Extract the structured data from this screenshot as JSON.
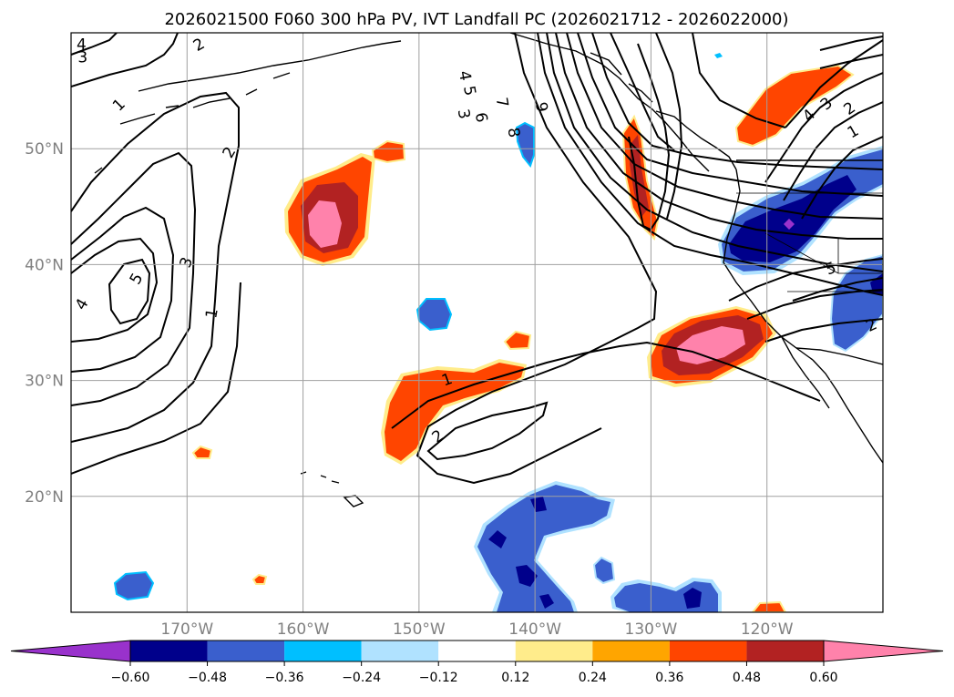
{
  "title": "2026021500 F060 300 hPa PV, IVT Landfall PC (2026021712 - 2026022000)",
  "map": {
    "lon_range": [
      -180,
      -110
    ],
    "lat_range": [
      10,
      60
    ],
    "lon_ticks": [
      {
        "value": -170,
        "label": "170°W"
      },
      {
        "value": -160,
        "label": "160°W"
      },
      {
        "value": -150,
        "label": "150°W"
      },
      {
        "value": -140,
        "label": "140°W"
      },
      {
        "value": -130,
        "label": "130°W"
      },
      {
        "value": -120,
        "label": "120°W"
      }
    ],
    "lat_ticks": [
      {
        "value": 20,
        "label": "20°N"
      },
      {
        "value": 30,
        "label": "30°N"
      },
      {
        "value": 40,
        "label": "40°N"
      },
      {
        "value": 50,
        "label": "50°N"
      }
    ],
    "gridlines": true,
    "contour_labels": [
      {
        "text": "4",
        "lon": -179.1,
        "lat": 59.0,
        "rot": 0
      },
      {
        "text": "3",
        "lon": -179.0,
        "lat": 57.9,
        "rot": 0
      },
      {
        "text": "2",
        "lon": -169.0,
        "lat": 59.0,
        "rot": -30
      },
      {
        "text": "1",
        "lon": -175.9,
        "lat": 53.8,
        "rot": -45
      },
      {
        "text": "2",
        "lon": -166.4,
        "lat": 49.7,
        "rot": -60
      },
      {
        "text": "3",
        "lon": -170.1,
        "lat": 40.2,
        "rot": -70
      },
      {
        "text": "1",
        "lon": -167.9,
        "lat": 35.8,
        "rot": -80
      },
      {
        "text": "5",
        "lon": -174.4,
        "lat": 38.8,
        "rot": -60
      },
      {
        "text": "4",
        "lon": -179.1,
        "lat": 36.6,
        "rot": -60
      },
      {
        "text": "4",
        "lon": -146.0,
        "lat": 56.3,
        "rot": 80
      },
      {
        "text": "5",
        "lon": -145.6,
        "lat": 55.0,
        "rot": 80
      },
      {
        "text": "3",
        "lon": -146.1,
        "lat": 53.0,
        "rot": 80
      },
      {
        "text": "6",
        "lon": -144.6,
        "lat": 52.7,
        "rot": 80
      },
      {
        "text": "7",
        "lon": -142.8,
        "lat": 54.0,
        "rot": 80
      },
      {
        "text": "8",
        "lon": -141.8,
        "lat": 51.4,
        "rot": 80
      },
      {
        "text": "9",
        "lon": -139.4,
        "lat": 53.6,
        "rot": 80
      },
      {
        "text": "4",
        "lon": -116.4,
        "lat": 52.9,
        "rot": -45
      },
      {
        "text": "3",
        "lon": -114.9,
        "lat": 53.9,
        "rot": -40
      },
      {
        "text": "2",
        "lon": -112.9,
        "lat": 53.5,
        "rot": -35
      },
      {
        "text": "1",
        "lon": -112.6,
        "lat": 51.5,
        "rot": -30
      },
      {
        "text": "5",
        "lon": -114.5,
        "lat": 39.7,
        "rot": -20
      },
      {
        "text": "2",
        "lon": -111.0,
        "lat": 34.8,
        "rot": -25
      },
      {
        "text": "1",
        "lon": -147.6,
        "lat": 30.1,
        "rot": -20
      },
      {
        "text": "2",
        "lon": -148.4,
        "lat": 25.2,
        "rot": -35
      }
    ]
  },
  "colorbar": {
    "levels": [
      "−0.60",
      "−0.48",
      "−0.36",
      "−0.24",
      "−0.12",
      "0.12",
      "0.24",
      "0.36",
      "0.48",
      "0.60"
    ],
    "colors": [
      "#9932cc",
      "#00008b",
      "#3a5fcd",
      "#00bfff",
      "#b0e2ff",
      "#ffffff",
      "#ffec8b",
      "#ffa500",
      "#ff4500",
      "#b22222",
      "#ff82ab"
    ],
    "extend": "both"
  },
  "colors": {
    "contour": "#000000",
    "grid": "#a0a0a0",
    "coast": "#000000"
  }
}
